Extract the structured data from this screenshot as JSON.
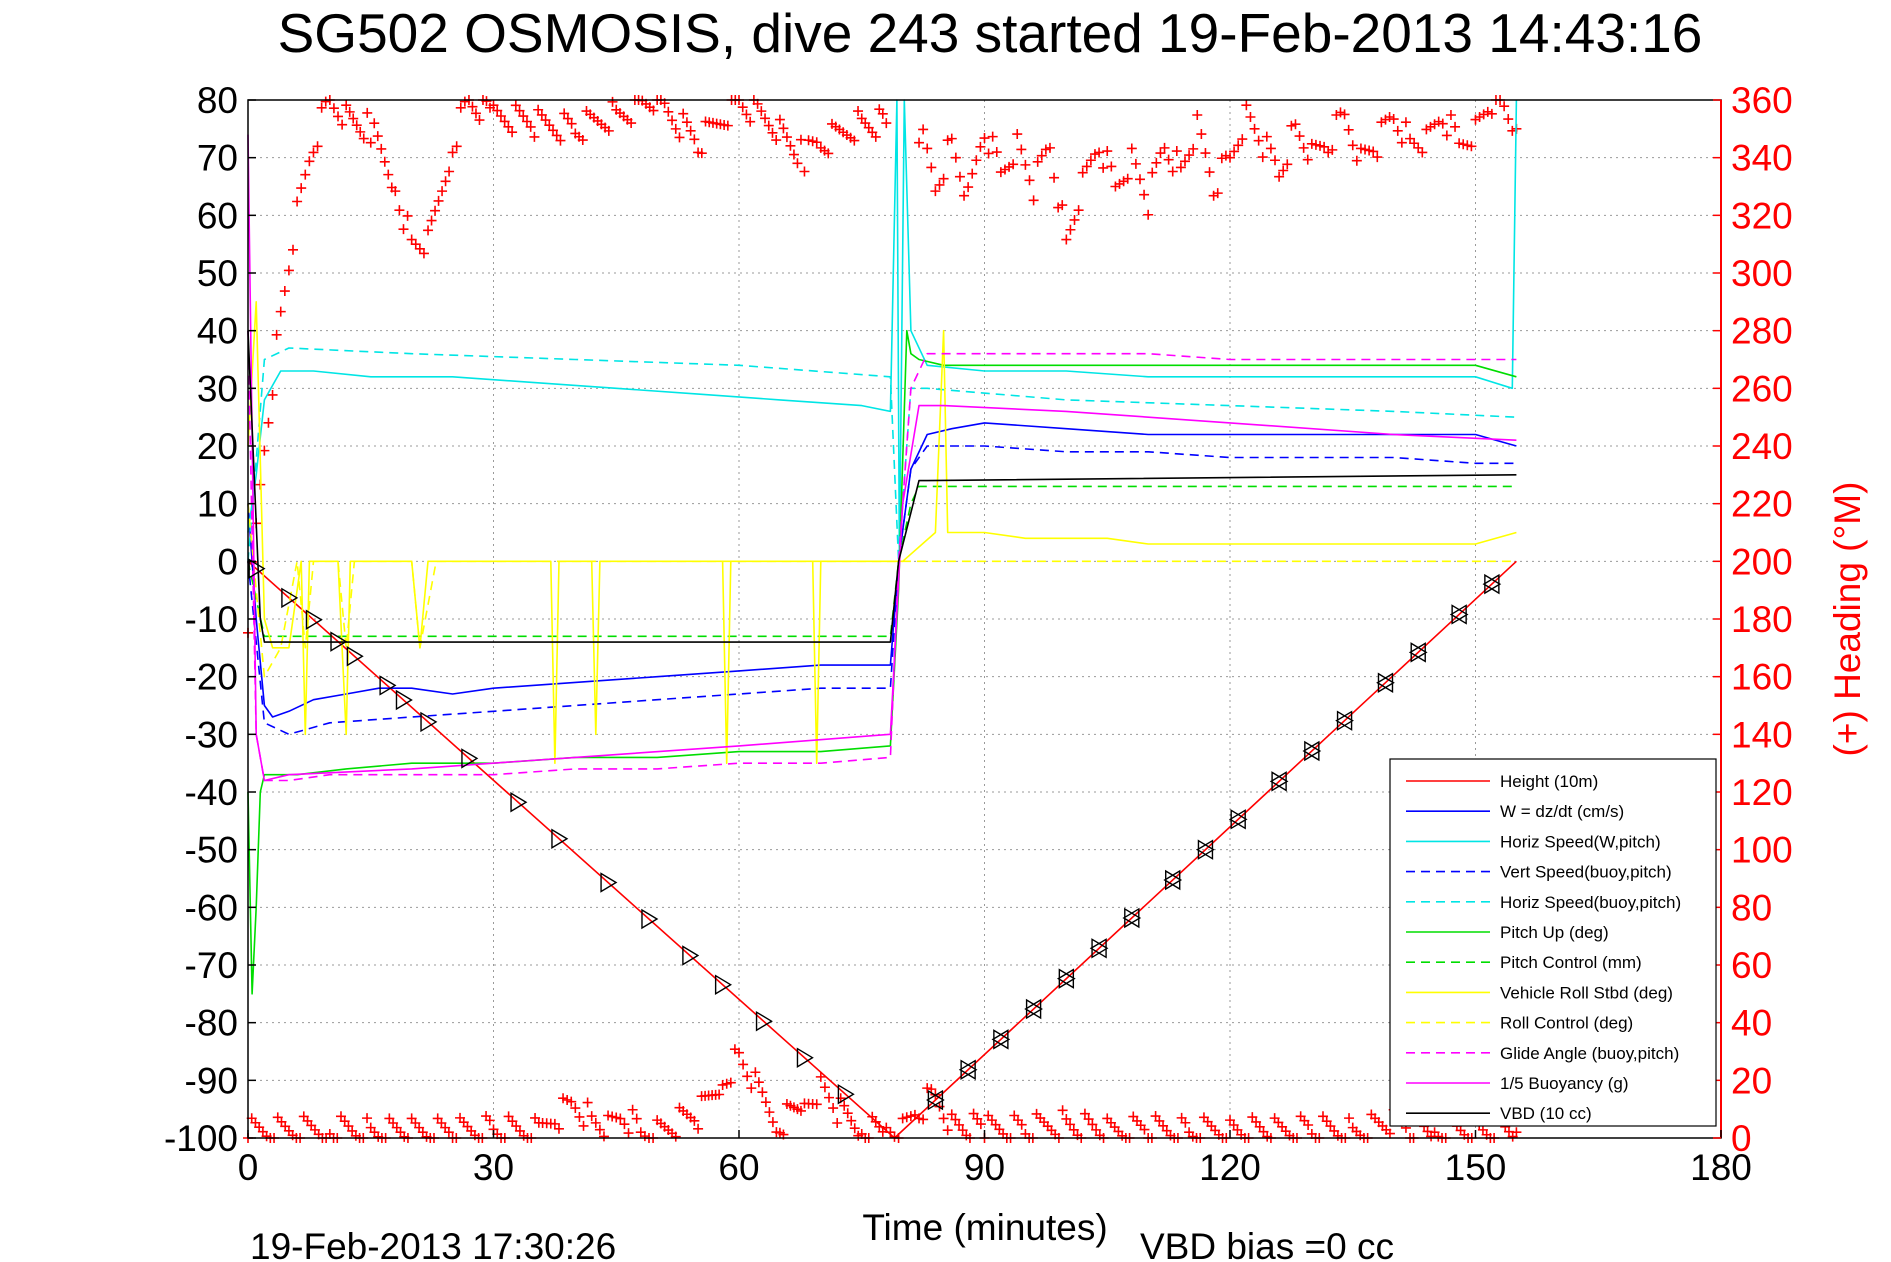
{
  "chart_data": {
    "type": "line",
    "title": "SG502 OSMOSIS, dive 243 started 19-Feb-2013 14:43:16",
    "xlabel": "Time (minutes)",
    "ylabel_right": "(+) Heading (°M)",
    "footer_date": "19-Feb-2013 17:30:26",
    "footer_note": "VBD bias =0 cc",
    "xlim": [
      0,
      180
    ],
    "ylim_left": [
      -100,
      80
    ],
    "ylim_right": [
      0,
      360
    ],
    "x_ticks": [
      "0",
      "30",
      "60",
      "90",
      "120",
      "150",
      "180"
    ],
    "y_ticks_left": [
      "80",
      "70",
      "60",
      "50",
      "40",
      "30",
      "20",
      "10",
      "0",
      "-10",
      "-20",
      "-30",
      "-40",
      "-50",
      "-60",
      "-70",
      "-80",
      "-90",
      "-100"
    ],
    "y_ticks_right": [
      "360",
      "340",
      "320",
      "300",
      "280",
      "260",
      "240",
      "220",
      "200",
      "180",
      "160",
      "140",
      "120",
      "100",
      "80",
      "60",
      "40",
      "20",
      "0"
    ],
    "grid": true,
    "legend_position": "bottom-right",
    "colors": {
      "axis_right": "#ff0000",
      "heading": "#ff0000",
      "height": "#ff0000",
      "w": "#0000ff",
      "horiz": "#00e5e5",
      "pitch": "#00dd00",
      "roll": "#ffff00",
      "glide": "#ff00ff",
      "vbd": "#000000"
    },
    "series": [
      {
        "name": "Height (10m)",
        "color": "#ff0000",
        "dash": "solid",
        "x": [
          0,
          79,
          155
        ],
        "y": [
          0,
          -100,
          0
        ]
      },
      {
        "name": "W = dz/dt (cm/s)",
        "color": "#0000ff",
        "dash": "solid",
        "x": [
          0,
          1,
          2,
          3,
          5,
          8,
          12,
          16,
          20,
          25,
          30,
          40,
          50,
          60,
          70,
          78.5,
          79.5,
          81,
          83,
          86,
          90,
          100,
          110,
          120,
          130,
          140,
          150,
          155
        ],
        "y": [
          10,
          -10,
          -25,
          -27,
          -26,
          -24,
          -23,
          -22,
          -22,
          -23,
          -22,
          -21,
          -20,
          -19,
          -18,
          -18,
          0,
          16,
          22,
          23,
          24,
          23,
          22,
          22,
          22,
          22,
          22,
          20
        ]
      },
      {
        "name": "Horiz Speed(W,pitch)",
        "color": "#00e5e5",
        "dash": "solid",
        "x": [
          0,
          1,
          2,
          4,
          8,
          15,
          25,
          35,
          45,
          55,
          65,
          75,
          78.5,
          79.3,
          79.6,
          80.2,
          81,
          83,
          90,
          100,
          110,
          120,
          130,
          140,
          150,
          154.5,
          155
        ],
        "y": [
          5,
          15,
          28,
          33,
          33,
          32,
          32,
          31,
          30,
          29,
          28,
          27,
          26,
          80,
          0,
          80,
          40,
          34,
          33,
          33,
          32,
          32,
          32,
          32,
          32,
          30,
          80
        ]
      },
      {
        "name": "Vert Speed(buoy,pitch)",
        "color": "#0000ff",
        "dash": "dash",
        "x": [
          0,
          2,
          5,
          10,
          20,
          30,
          40,
          50,
          60,
          70,
          78.5,
          79.5,
          81,
          83,
          90,
          100,
          110,
          120,
          130,
          140,
          150,
          155
        ],
        "y": [
          0,
          -28,
          -30,
          -28,
          -27,
          -26,
          -25,
          -24,
          -23,
          -22,
          -22,
          0,
          16,
          20,
          20,
          19,
          19,
          18,
          18,
          18,
          17,
          17
        ]
      },
      {
        "name": "Horiz Speed(buoy,pitch)",
        "color": "#00e5e5",
        "dash": "dash",
        "x": [
          0,
          2,
          5,
          20,
          40,
          60,
          78.5,
          79.5,
          81,
          83,
          100,
          120,
          140,
          155
        ],
        "y": [
          0,
          35,
          37,
          36,
          35,
          34,
          32,
          0,
          30,
          30,
          28,
          27,
          26,
          25
        ]
      },
      {
        "name": "Pitch Up (deg)",
        "color": "#00dd00",
        "dash": "solid",
        "x": [
          0,
          0.5,
          1,
          1.5,
          2,
          3,
          6,
          12,
          20,
          30,
          40,
          50,
          60,
          70,
          78.5,
          79.5,
          80.5,
          81,
          82,
          85,
          90,
          100,
          110,
          120,
          130,
          140,
          150,
          155
        ],
        "y": [
          -40,
          -75,
          -60,
          -40,
          -37,
          -37,
          -37,
          -36,
          -35,
          -35,
          -34,
          -34,
          -33,
          -33,
          -32,
          -5,
          40,
          36,
          35,
          34,
          34,
          34,
          34,
          34,
          34,
          34,
          34,
          32
        ]
      },
      {
        "name": "Pitch Control (mm)",
        "color": "#00dd00",
        "dash": "dash",
        "x": [
          0,
          2,
          78.5,
          79.5,
          81,
          82,
          155
        ],
        "y": [
          0,
          -13,
          -13,
          0,
          10,
          13,
          13
        ]
      },
      {
        "name": "Vehicle Roll Stbd (deg)",
        "color": "#ffff00",
        "dash": "solid",
        "x": [
          0,
          1,
          2,
          3,
          5,
          6.5,
          7,
          7.5,
          8,
          11,
          12,
          12.5,
          13,
          20,
          21,
          22,
          23,
          30,
          37,
          37.5,
          38,
          42,
          42.5,
          43,
          50,
          58,
          58.5,
          59,
          69,
          69.5,
          70,
          78.5,
          80,
          84,
          85,
          85.5,
          90,
          95,
          100,
          105,
          110,
          115,
          120,
          125,
          130,
          135,
          140,
          145,
          150,
          155
        ],
        "y": [
          20,
          45,
          -10,
          -15,
          -15,
          0,
          -30,
          0,
          0,
          0,
          -30,
          0,
          0,
          0,
          -15,
          0,
          0,
          0,
          0,
          -35,
          0,
          0,
          -30,
          0,
          0,
          0,
          -35,
          0,
          0,
          -35,
          0,
          0,
          0,
          5,
          40,
          5,
          5,
          4,
          4,
          4,
          3,
          3,
          3,
          3,
          3,
          3,
          3,
          3,
          3,
          5
        ]
      },
      {
        "name": "Roll Control (deg)",
        "color": "#ffff00",
        "dash": "dash",
        "x": [
          0,
          2,
          4,
          6,
          7,
          8,
          11,
          12,
          13,
          20,
          21,
          23,
          30,
          40,
          60,
          70,
          78.5,
          80,
          82,
          90,
          100,
          110,
          120,
          130,
          140,
          150,
          155
        ],
        "y": [
          10,
          -20,
          -15,
          0,
          -15,
          0,
          0,
          -15,
          0,
          0,
          -15,
          0,
          0,
          0,
          0,
          0,
          0,
          0,
          0,
          0,
          0,
          0,
          0,
          0,
          0,
          0,
          0
        ]
      },
      {
        "name": "Glide Angle (buoy,pitch)",
        "color": "#ff00ff",
        "dash": "dash",
        "x": [
          0,
          1,
          2,
          5,
          10,
          20,
          30,
          40,
          50,
          60,
          70,
          78.5,
          79.5,
          81,
          83,
          90,
          100,
          110,
          120,
          130,
          140,
          150,
          155
        ],
        "y": [
          40,
          -30,
          -38,
          -38,
          -37,
          -37,
          -37,
          -36,
          -36,
          -35,
          -35,
          -34,
          0,
          30,
          36,
          36,
          36,
          36,
          35,
          35,
          35,
          35,
          35
        ]
      },
      {
        "name": "1/5 Buoyancy (g)",
        "color": "#ff00ff",
        "dash": "solid",
        "x": [
          0,
          1,
          2,
          5,
          20,
          40,
          60,
          78.5,
          80,
          82,
          85,
          100,
          120,
          140,
          155
        ],
        "y": [
          74,
          -30,
          -38,
          -37,
          -36,
          -34,
          -32,
          -30,
          10,
          27,
          27,
          26,
          24,
          22,
          21
        ]
      },
      {
        "name": "VBD (10 cc)",
        "color": "#000000",
        "dash": "solid",
        "x": [
          0,
          1.5,
          2,
          78.5,
          79.5,
          82,
          83,
          155
        ],
        "y": [
          40,
          -10,
          -14,
          -14,
          0,
          14,
          14,
          15
        ]
      }
    ],
    "heading_series": {
      "name": "Heading",
      "axis": "right",
      "color": "#ff0000",
      "marker": "+",
      "segments": [
        {
          "x": [
            0,
            2,
            4,
            6,
            8,
            10,
            12,
            15,
            18,
            20,
            22,
            25,
            27,
            30,
            35,
            40,
            45,
            50,
            55,
            60,
            65,
            68,
            70,
            75,
            78
          ],
          "y": [
            180,
            240,
            285,
            320,
            345,
            360,
            355,
            350,
            330,
            310,
            310,
            345,
            360,
            355,
            352,
            350,
            355,
            360,
            345,
            360,
            350,
            340,
            345,
            352,
            352
          ]
        },
        {
          "x": [
            82,
            84,
            86,
            88,
            90,
            92,
            94,
            96,
            98,
            100,
            102,
            104,
            106,
            108,
            110,
            112,
            114,
            116,
            118,
            120,
            122,
            124,
            126,
            128,
            130,
            132,
            134,
            136,
            138,
            140,
            142,
            144,
            146,
            148,
            150,
            152,
            154,
            155
          ],
          "y": [
            350,
            330,
            345,
            325,
            350,
            335,
            345,
            330,
            345,
            310,
            330,
            345,
            330,
            340,
            325,
            345,
            335,
            350,
            330,
            340,
            355,
            345,
            335,
            350,
            340,
            345,
            355,
            340,
            345,
            355,
            345,
            345,
            355,
            345,
            350,
            360,
            355,
            350
          ]
        },
        {
          "x": [
            0,
            10,
            15,
            20,
            25,
            30,
            36,
            38,
            40,
            42,
            44,
            46,
            48,
            50,
            55,
            58,
            60,
            62,
            65,
            68,
            70,
            72,
            75,
            78,
            80,
            82,
            84,
            86,
            90,
            95,
            100,
            105,
            110,
            115,
            120,
            125,
            130,
            135,
            140,
            142,
            145,
            150,
            155
          ],
          "y": [
            2,
            3,
            2,
            2,
            2,
            3,
            2,
            8,
            12,
            6,
            3,
            8,
            2,
            3,
            8,
            20,
            28,
            18,
            5,
            12,
            18,
            10,
            3,
            2,
            2,
            10,
            15,
            5,
            3,
            3,
            5,
            2,
            3,
            2,
            3,
            2,
            3,
            2,
            5,
            3,
            2,
            3,
            2
          ]
        }
      ]
    },
    "annotations": {
      "down_markers_x": [
        1,
        5,
        8,
        11,
        13,
        17,
        19,
        22,
        27,
        33,
        38,
        44,
        49,
        54,
        58,
        63,
        68,
        73
      ],
      "up_markers_x": [
        84,
        88,
        92,
        96,
        100,
        104,
        108,
        113,
        117,
        121,
        126,
        130,
        134,
        139,
        143,
        148,
        152
      ]
    }
  }
}
